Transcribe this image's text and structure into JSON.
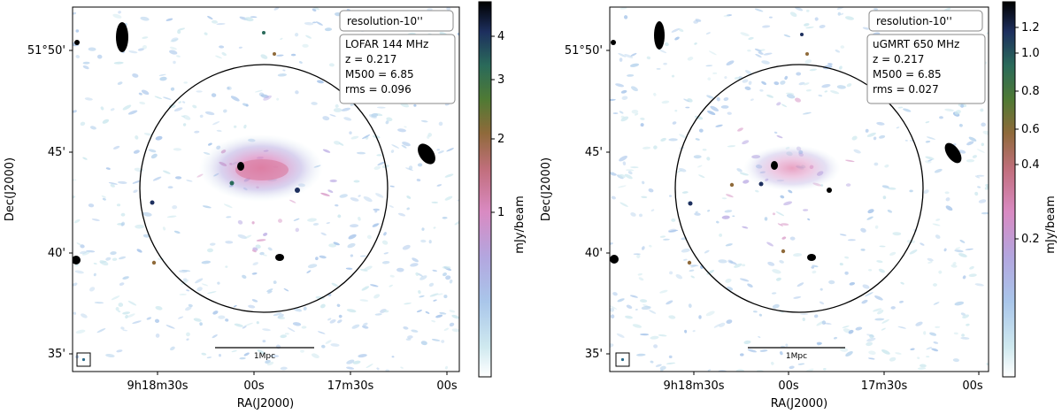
{
  "panels": [
    {
      "resolution_label": "resolution-10''",
      "instrument": "LOFAR 144 MHz",
      "z": "z = 0.217",
      "m500": "M500 = 6.85",
      "rms": "rms = 0.096",
      "scale_bar": "1Mpc",
      "y_ticks": [
        "51°50'",
        "45'",
        "40'",
        "35'"
      ],
      "x_ticks": [
        "9h18m30s",
        "00s",
        "17m30s",
        "00s"
      ],
      "y_label": "Dec(J2000)",
      "x_label": "RA(J2000)",
      "colorbar_ticks": [
        "4",
        "3",
        "2",
        "1"
      ],
      "colorbar_label": "mJy/beam"
    },
    {
      "resolution_label": "resolution-10''",
      "instrument": "uGMRT 650 MHz",
      "z": "z = 0.217",
      "m500": "M500 = 6.85",
      "rms": "rms = 0.027",
      "scale_bar": "1Mpc",
      "y_ticks": [
        "51°50'",
        "45'",
        "40'",
        "35'"
      ],
      "x_ticks": [
        "9h18m30s",
        "00s",
        "17m30s",
        "00s"
      ],
      "y_label": "Dec(J2000)",
      "x_label": "RA(J2000)",
      "colorbar_ticks": [
        "1.2",
        "1.0",
        "0.8",
        "0.6",
        "0.4",
        "0.2"
      ],
      "colorbar_label": "mJy/beam"
    }
  ],
  "colors": {
    "colormap": [
      "#ffffff",
      "#cfe9ef",
      "#a9c6ea",
      "#b3a6df",
      "#d98ac2",
      "#c26f7e",
      "#8f6a3a",
      "#4f7a34",
      "#2a6a5a",
      "#1d2f5e",
      "#000000"
    ]
  }
}
